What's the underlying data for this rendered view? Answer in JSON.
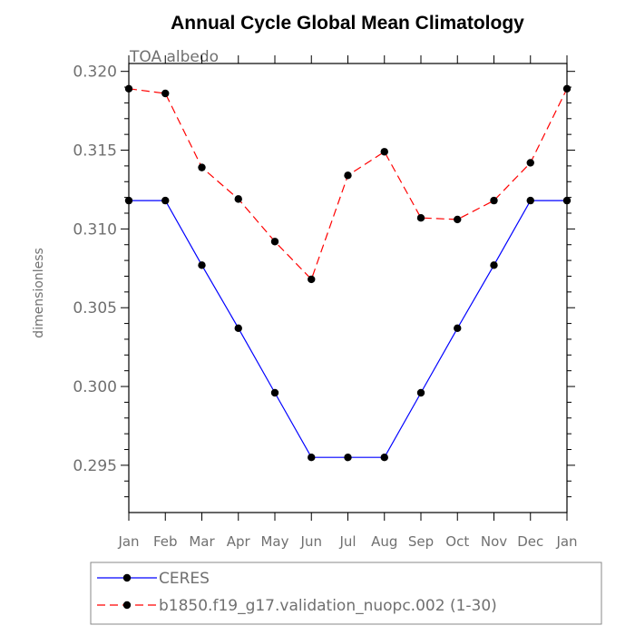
{
  "chart_data": {
    "type": "line",
    "title": "Annual Cycle Global Mean Climatology",
    "subtitle": "TOA albedo",
    "xlabel": "",
    "ylabel": "dimensionless",
    "categories": [
      "Jan",
      "Feb",
      "Mar",
      "Apr",
      "May",
      "Jun",
      "Jul",
      "Aug",
      "Sep",
      "Oct",
      "Nov",
      "Dec",
      "Jan"
    ],
    "ylim": [
      0.292,
      0.3205
    ],
    "yticks": [
      0.295,
      0.3,
      0.305,
      0.31,
      0.315,
      0.32
    ],
    "ytick_labels": [
      "0.295",
      "0.300",
      "0.305",
      "0.310",
      "0.315",
      "0.320"
    ],
    "legend_position": "bottom",
    "series": [
      {
        "name": "CERES",
        "color": "#0000ff",
        "line_style": "solid",
        "marker": "filled-circle",
        "values": [
          0.3118,
          0.3118,
          0.3077,
          0.3037,
          0.2996,
          0.2955,
          0.2955,
          0.2955,
          0.2996,
          0.3037,
          0.3077,
          0.3118,
          0.3118
        ]
      },
      {
        "name": "b1850.f19_g17.validation_nuopc.002 (1-30)",
        "color": "#ff0000",
        "line_style": "dashed",
        "marker": "filled-circle",
        "values": [
          0.3189,
          0.3186,
          0.3139,
          0.3119,
          0.3092,
          0.3068,
          0.3134,
          0.3149,
          0.3107,
          0.3106,
          0.3118,
          0.3142,
          0.3189
        ]
      }
    ]
  }
}
